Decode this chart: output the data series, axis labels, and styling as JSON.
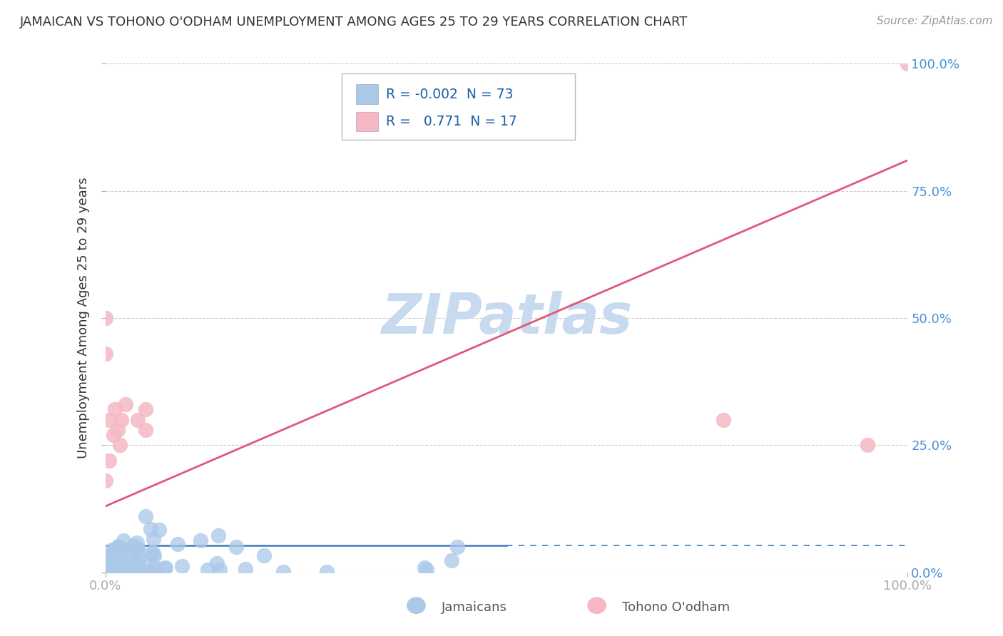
{
  "title": "JAMAICAN VS TOHONO O'ODHAM UNEMPLOYMENT AMONG AGES 25 TO 29 YEARS CORRELATION CHART",
  "source": "Source: ZipAtlas.com",
  "ylabel": "Unemployment Among Ages 25 to 29 years",
  "xlim": [
    0,
    1.0
  ],
  "ylim": [
    0,
    1.0
  ],
  "xticklabels": [
    "0.0%",
    "100.0%"
  ],
  "yticklabels_right": [
    "0.0%",
    "25.0%",
    "50.0%",
    "75.0%",
    "100.0%"
  ],
  "legend_R_blue": "-0.002",
  "legend_N_blue": "73",
  "legend_R_pink": "0.771",
  "legend_N_pink": "17",
  "blue_color": "#aac8e8",
  "pink_color": "#f5b8c4",
  "blue_line_color": "#3a7abf",
  "pink_line_color": "#e05878",
  "grid_color": "#cccccc",
  "background_color": "#ffffff",
  "watermark": "ZIPatlas",
  "watermark_color": "#c8daf0",
  "text_color": "#333333",
  "right_tick_color": "#4a90d9",
  "source_color": "#999999",
  "legend_text_color": "#1a5fa8",
  "bottom_legend_color": "#555555",
  "blue_line_solid_end": 0.5,
  "pink_line_y_start": 0.13,
  "pink_line_y_end": 0.81,
  "blue_line_y": 0.053
}
